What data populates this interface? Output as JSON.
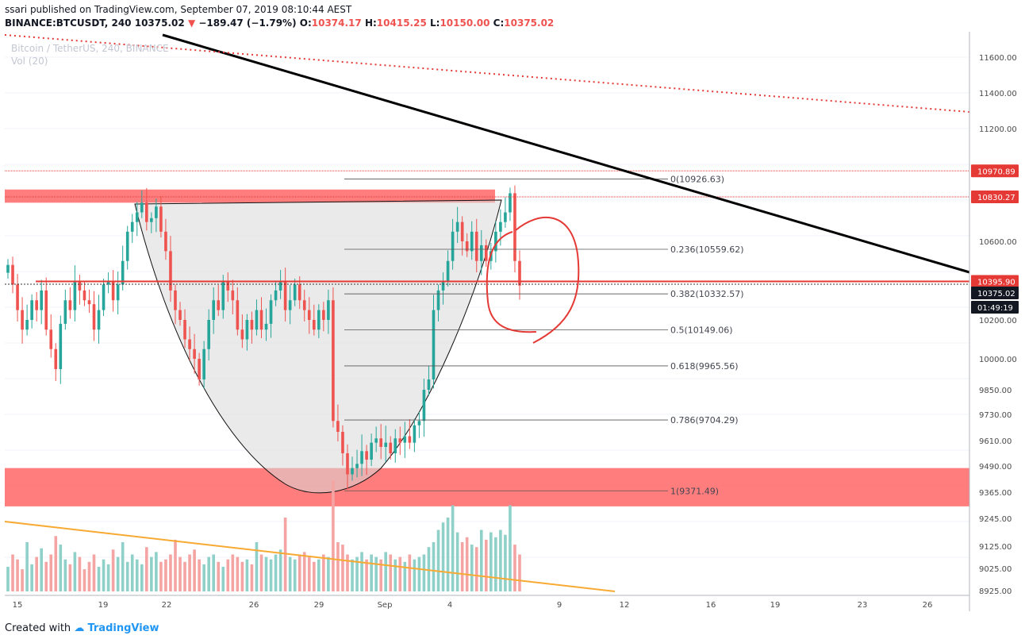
{
  "header": {
    "published": "ssari published on TradingView.com, September 07, 2019 08:10:44 AEST",
    "symbol": "BINANCE:BTCUSDT, 240",
    "last": "10375.02",
    "change_arrow": "▼",
    "change": "−189.47 (−1.79%)",
    "o_label": "O:",
    "o_value": "10374.17",
    "h_label": "H:",
    "h_value": "10415.25",
    "l_label": "L:",
    "l_value": "10150.00",
    "c_label": "C:",
    "c_value": "10375.02"
  },
  "overlay": {
    "title": "Bitcoin / TetherUS, 240, BINANCE",
    "volume": "Vol (20)"
  },
  "footer": {
    "created_with": "Created with",
    "brand": "TradingView"
  },
  "colors": {
    "up": "#26a69a",
    "down": "#ef5350",
    "up_vol": "#8fd0c9",
    "down_vol": "#f4a4a2",
    "accent": "#e53935",
    "zone": "#ff5252",
    "trend": "#000000",
    "wedge": "#f7a932",
    "grid": "#f0f3fa"
  },
  "chart_data": {
    "type": "candlestick",
    "y_ticks": [
      "11600.00",
      "11400.00",
      "11200.00",
      "10830.27",
      "10600.00",
      "10200.00",
      "10000.00",
      "9850.00",
      "9730.00",
      "9610.00",
      "9490.00",
      "9365.00",
      "9245.00",
      "9125.00",
      "9025.00",
      "8925.00"
    ],
    "x_ticks": [
      "15",
      "19",
      "22",
      "26",
      "29",
      "Sep",
      "4",
      "9",
      "12",
      "16",
      "19",
      "23",
      "26"
    ],
    "price_labels": [
      {
        "value": "10970.89",
        "style": "red"
      },
      {
        "value": "10830.27",
        "style": "red"
      },
      {
        "value": "10395.90",
        "style": "red"
      },
      {
        "value": "10375.02",
        "style": "black"
      },
      {
        "value": "01:49:19",
        "style": "black"
      }
    ],
    "fib_levels": [
      {
        "label": "0(10926.63)",
        "price": 10926.63
      },
      {
        "label": "0.236(10559.62)",
        "price": 10559.62
      },
      {
        "label": "0.382(10332.57)",
        "price": 10332.57
      },
      {
        "label": "0.5(10149.06)",
        "price": 10149.06
      },
      {
        "label": "0.618(9965.56)",
        "price": 9965.56
      },
      {
        "label": "0.786(9704.29)",
        "price": 9704.29
      },
      {
        "label": "1(9371.49)",
        "price": 9371.49
      }
    ],
    "resistance_lines": [
      10970.89,
      10830.27,
      10395.9
    ],
    "zones": [
      {
        "name": "resistance zone",
        "from": 10800,
        "to": 10870
      },
      {
        "name": "support zone",
        "from": 9300,
        "to": 9480
      }
    ],
    "closes": [
      10480,
      10380,
      10250,
      10150,
      10200,
      10300,
      10250,
      10350,
      10150,
      10050,
      9950,
      10180,
      10300,
      10250,
      10400,
      10350,
      10300,
      10280,
      10150,
      10250,
      10380,
      10400,
      10300,
      10380,
      10500,
      10650,
      10700,
      10750,
      10800,
      10700,
      10720,
      10780,
      10650,
      10550,
      10350,
      10250,
      10200,
      10100,
      10050,
      10000,
      9900,
      10050,
      10200,
      10300,
      10250,
      10400,
      10350,
      10300,
      10150,
      10100,
      10200,
      10150,
      10250,
      10150,
      10180,
      10300,
      10350,
      10400,
      10250,
      10300,
      10380,
      10300,
      10250,
      10200,
      10150,
      10250,
      10200,
      10300,
      9700,
      9650,
      9550,
      9450,
      9480,
      9500,
      9560,
      9520,
      9600,
      9620,
      9580,
      9600,
      9550,
      9620,
      9600,
      9630,
      9600,
      9680,
      9700,
      9850,
      9900,
      10250,
      10350,
      10400,
      10500,
      10650,
      10700,
      10600,
      10550,
      10650,
      10500,
      10580,
      10500,
      10550,
      10650,
      10700,
      10750,
      10850,
      10500,
      10375
    ],
    "volumes": [
      20,
      30,
      26,
      18,
      40,
      22,
      28,
      35,
      24,
      30,
      45,
      38,
      26,
      22,
      32,
      28,
      18,
      24,
      30,
      20,
      26,
      22,
      34,
      28,
      40,
      24,
      30,
      26,
      22,
      36,
      28,
      32,
      24,
      26,
      30,
      42,
      28,
      24,
      30,
      34,
      26,
      22,
      28,
      30,
      24,
      20,
      26,
      30,
      28,
      24,
      26,
      22,
      40,
      30,
      28,
      26,
      30,
      34,
      60,
      28,
      26,
      30,
      32,
      28,
      24,
      26,
      30,
      28,
      90,
      40,
      38,
      30,
      26,
      28,
      32,
      26,
      30,
      28,
      26,
      32,
      30,
      26,
      28,
      24,
      30,
      26,
      28,
      30,
      36,
      40,
      50,
      56,
      60,
      70,
      48,
      40,
      44,
      38,
      36,
      50,
      42,
      48,
      44,
      50,
      46,
      70,
      38,
      30
    ]
  }
}
